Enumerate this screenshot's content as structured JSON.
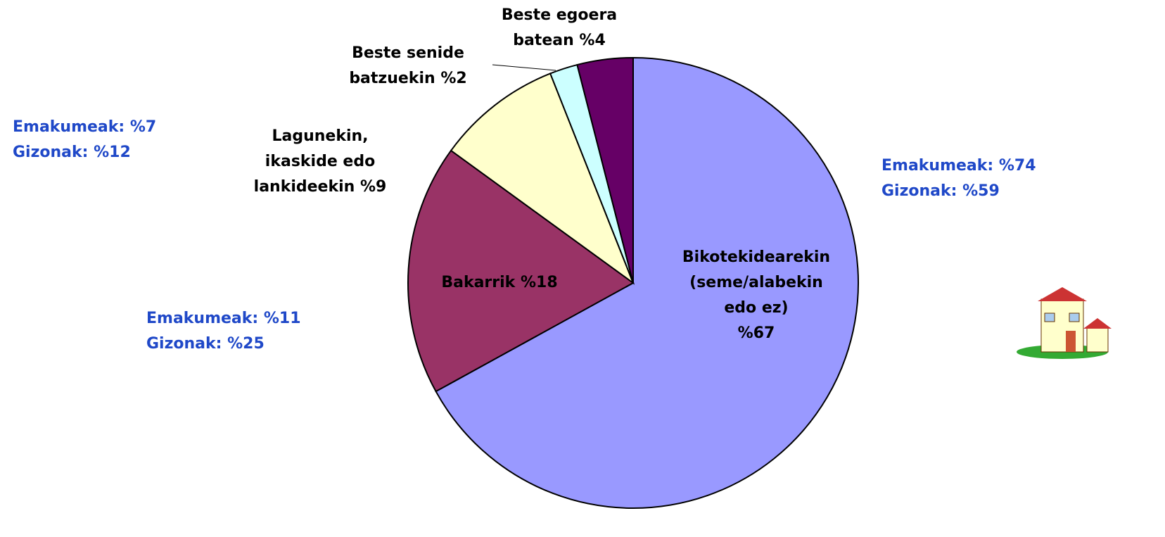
{
  "chart_data": {
    "type": "pie",
    "categories": [
      "Bikotekidearekin\n(seme/alabekin\nedo ez)",
      "Bakarrik",
      "Lagunekin,\nikaskide edo\nlankideekin",
      "Beste senide\nbatzuekin",
      "Beste egoera\nbatean"
    ],
    "values": [
      67,
      18,
      9,
      2,
      4
    ],
    "value_labels": [
      "%67",
      "%18",
      "%9",
      "%2",
      "%4"
    ],
    "colors": [
      "#9999ff",
      "#993366",
      "#ffffcc",
      "#ccffff",
      "#660066"
    ],
    "annotations": [
      {
        "lines": [
          "Emakumeak: %74",
          "Gizonak: %59"
        ]
      },
      {
        "lines": [
          "Emakumeak: %11",
          "Gizonak: %25"
        ]
      },
      {
        "lines": [
          "Emakumeak: %7",
          "Gizonak: %12"
        ]
      }
    ]
  }
}
